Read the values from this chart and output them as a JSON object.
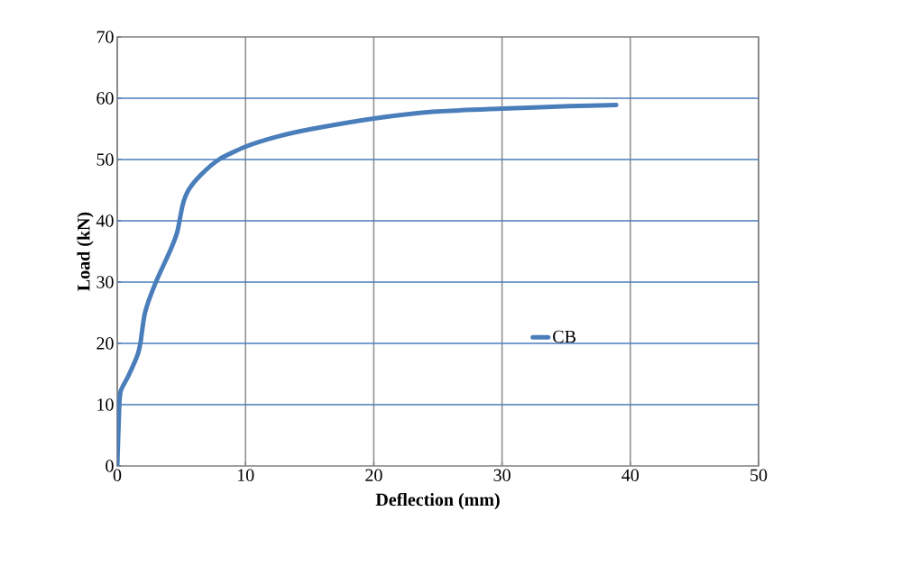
{
  "chart_data": {
    "type": "line",
    "xlabel": "Deflection (mm)",
    "ylabel": "Load (kN)",
    "xlim": [
      0,
      50
    ],
    "ylim": [
      0,
      70
    ],
    "xticks": [
      0,
      10,
      20,
      30,
      40,
      50
    ],
    "yticks": [
      0,
      10,
      20,
      30,
      40,
      50,
      60,
      70
    ],
    "grid": true,
    "legend": "right",
    "marker": "none",
    "line_style": "solid",
    "series": [
      {
        "name": "CB",
        "color": "#4a7ebb",
        "x": [
          0,
          0.16,
          0.28,
          0.87,
          1.58,
          1.81,
          2.16,
          2.99,
          4.16,
          4.68,
          5.1,
          5.58,
          6.52,
          7.93,
          10,
          12.6,
          15.2,
          20,
          24.6,
          30,
          35.2,
          38.9
        ],
        "values": [
          0,
          10,
          12.3,
          14.7,
          18.1,
          20.1,
          25,
          29.9,
          35.3,
          38.2,
          42.6,
          45.1,
          47.5,
          50,
          52.1,
          53.8,
          55.0,
          56.7,
          57.8,
          58.3,
          58.7,
          58.9
        ]
      }
    ]
  }
}
